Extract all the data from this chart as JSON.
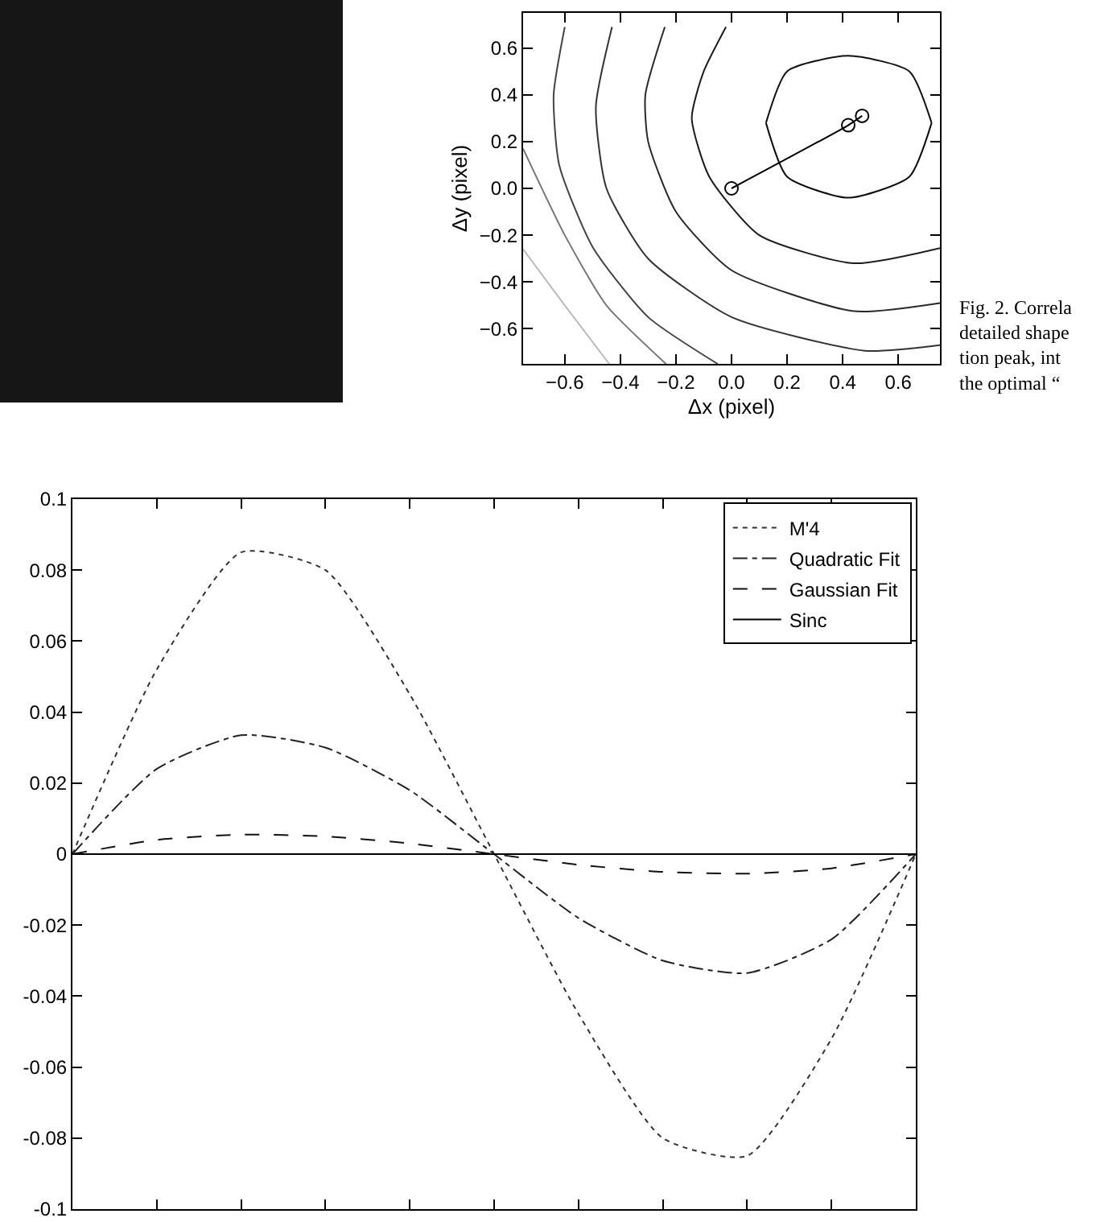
{
  "chart_data": [
    {
      "type": "line",
      "xlabel": "Δx (pixel)",
      "ylabel": "Δy (pixel)",
      "xlim": [
        -0.75,
        0.75
      ],
      "ylim": [
        -0.75,
        0.75
      ],
      "xticks": [
        {
          "value": -0.6,
          "label": "−0.6"
        },
        {
          "value": -0.4,
          "label": "−0.4"
        },
        {
          "value": -0.2,
          "label": "−0.2"
        },
        {
          "value": 0,
          "label": "0.0"
        },
        0.2,
        0.4,
        0.6
      ],
      "yticks": [
        {
          "value": -0.6,
          "label": "−0.6"
        },
        {
          "value": -0.4,
          "label": "−0.4"
        },
        {
          "value": -0.2,
          "label": "−0.2"
        },
        {
          "value": 0,
          "label": "0.0"
        },
        0.2,
        0.4,
        0.6
      ],
      "grid": false,
      "marker": "none",
      "line_style": "solid",
      "annotations": [
        "Fig. 2. Correla\ndetailed shape\ntion peak, int\nthe optimal “"
      ],
      "series": [
        {
          "color": "#101010",
          "x": [
            0.124,
            0.2,
            0.42,
            0.64,
            0.72
          ],
          "values": [
            0.28,
            0.5,
            0.567,
            0.5,
            0.28
          ]
        },
        {
          "color": "#0c0c0c",
          "x": [
            0.124,
            0.2,
            0.42,
            0.64,
            0.72
          ],
          "values": [
            0.28,
            0.05,
            -0.04,
            0.05,
            0.28
          ]
        },
        {
          "color": "#1c1c1c",
          "x": [
            -0.02,
            -0.1,
            -0.143,
            -0.08,
            0.1,
            0.44,
            0.75
          ],
          "values": [
            0.69,
            0.5,
            0.3,
            0.05,
            -0.2,
            -0.32,
            -0.255
          ]
        },
        {
          "color": "#282828",
          "x": [
            -0.24,
            -0.31,
            -0.3,
            -0.2,
            0,
            0.44,
            0.75
          ],
          "values": [
            0.69,
            0.4,
            0.2,
            -0.1,
            -0.35,
            -0.525,
            -0.49
          ]
        },
        {
          "color": "#333333",
          "x": [
            -0.43,
            -0.488,
            -0.45,
            -0.3,
            0,
            0.48,
            0.75
          ],
          "values": [
            0.69,
            0.35,
            0,
            -0.3,
            -0.55,
            -0.694,
            -0.67
          ]
        },
        {
          "color": "#444444",
          "x": [
            -0.6,
            -0.64,
            -0.62,
            -0.5,
            -0.3,
            -0.05
          ],
          "values": [
            0.69,
            0.4,
            0.1,
            -0.25,
            -0.55,
            -0.75
          ]
        },
        {
          "color": "#777777",
          "x": [
            -0.75,
            -0.6,
            -0.45,
            -0.236
          ],
          "values": [
            0.17,
            -0.2,
            -0.5,
            -0.75
          ]
        },
        {
          "color": "#bbbbbb",
          "x": [
            -0.75,
            -0.6,
            -0.44
          ],
          "values": [
            -0.26,
            -0.5,
            -0.75
          ]
        },
        {
          "color": "#000000",
          "marker": "circle",
          "x": [
            0,
            0.42,
            0.47
          ],
          "values": [
            0,
            0.27,
            0.31
          ]
        }
      ]
    },
    {
      "type": "line",
      "categories": [
        null,
        null,
        null,
        null,
        null,
        null,
        null,
        null,
        null,
        null,
        null
      ],
      "ylim": [
        -0.1,
        0.1
      ],
      "yticks": [
        -0.1,
        -0.08,
        -0.06,
        -0.04,
        -0.02,
        0,
        0.02,
        0.04,
        0.06,
        0.08,
        0.1
      ],
      "tick_labels": "y",
      "grid": false,
      "legend": "top right",
      "marker": "none",
      "series": [
        {
          "name": "M'4",
          "color": "#333333",
          "line_style": "dotted",
          "values": [
            0,
            0.052,
            0.085,
            0.08,
            0.045,
            0,
            -0.045,
            -0.08,
            -0.085,
            -0.052,
            0
          ]
        },
        {
          "name": "Quadratic Fit",
          "color": "#222222",
          "line_style": "dashdot",
          "values": [
            0,
            0.024,
            0.0335,
            0.03,
            0.018,
            0,
            -0.018,
            -0.03,
            -0.0335,
            -0.024,
            0
          ]
        },
        {
          "name": "Gaussian Fit",
          "color": "#111111",
          "line_style": "dashed",
          "values": [
            0,
            0.004,
            0.0055,
            0.005,
            0.003,
            0,
            -0.003,
            -0.005,
            -0.0055,
            -0.004,
            0
          ]
        },
        {
          "name": "Sinc",
          "color": "#000000",
          "line_style": "solid",
          "values": [
            0,
            0,
            0,
            0,
            0,
            0,
            0,
            0,
            0,
            0,
            0
          ]
        }
      ]
    }
  ]
}
